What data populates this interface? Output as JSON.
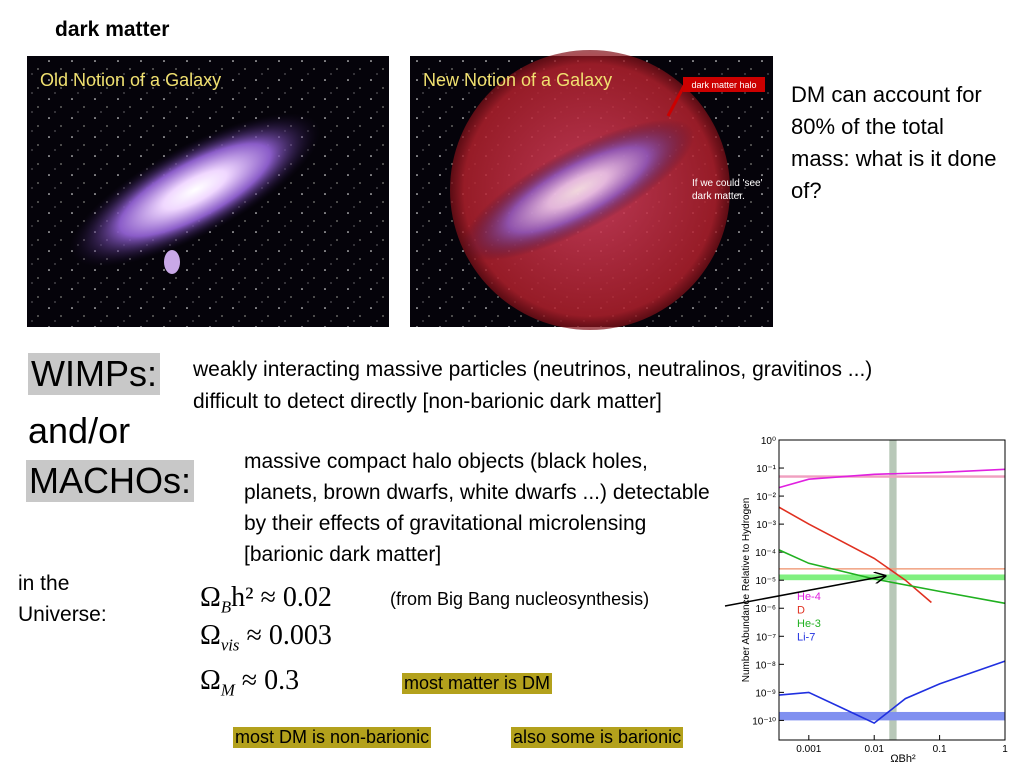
{
  "title": "dark matter",
  "images": [
    {
      "caption": "Old Notion of a Galaxy"
    },
    {
      "caption": "New Notion of a Galaxy",
      "halo_label": "dark matter halo",
      "note_1": "If we could 'see'",
      "note_2": "dark matter."
    }
  ],
  "side_note": "DM can account for 80% of the total mass: what is it done of?",
  "wimps": {
    "label": "WIMPs:",
    "line_1": "weakly interacting massive particles (neutrinos, neutralinos, gravitinos ...)",
    "line_2": "difficult to detect directly [non-barionic dark matter]"
  },
  "and_or": "and/or",
  "machos": {
    "label": "MACHOs:",
    "description": "massive compact halo objects (black holes, planets, brown dwarfs, white dwarfs ...) detectable by their effects of gravitational microlensing [barionic dark matter]"
  },
  "universe_label": "in the Universe:",
  "formulas": [
    {
      "subscript": "B",
      "rest": "h² ≈ 0.02",
      "note": "(from Big Bang nucleosynthesis)"
    },
    {
      "subscript": "vis",
      "rest": " ≈ 0.003"
    },
    {
      "subscript": "M",
      "rest": " ≈ 0.3"
    }
  ],
  "highlights": [
    "most matter is DM",
    "most DM is non-barionic",
    "also some is barionic"
  ],
  "plot": {
    "type": "line",
    "x_label": "ΩBh²",
    "y_label": "Number Abundance Relative to Hydrogen",
    "log_x": true,
    "log_y": true,
    "xlim": [
      0.00035,
      1
    ],
    "ylim": [
      2e-11,
      1
    ],
    "xticks": [
      0.001,
      0.01,
      0.1,
      1
    ],
    "yticks": [
      {
        "value": 1,
        "label": "10⁰"
      },
      {
        "value": 0.1,
        "label": "10⁻¹"
      },
      {
        "value": 0.01,
        "label": "10⁻²"
      },
      {
        "value": 0.001,
        "label": "10⁻³"
      },
      {
        "value": 0.0001,
        "label": "10⁻⁴"
      },
      {
        "value": 1e-05,
        "label": "10⁻⁵"
      },
      {
        "value": 1e-06,
        "label": "10⁻⁶"
      },
      {
        "value": 1e-07,
        "label": "10⁻⁷"
      },
      {
        "value": 1e-08,
        "label": "10⁻⁸"
      },
      {
        "value": 1e-09,
        "label": "10⁻⁹"
      },
      {
        "value": 1e-10,
        "label": "10⁻¹⁰"
      }
    ],
    "series": [
      {
        "name": "He-4",
        "color": "#e020e0",
        "x": [
          0.00035,
          0.001,
          0.01,
          0.1,
          1
        ],
        "values": [
          0.02,
          0.04,
          0.06,
          0.07,
          0.09
        ]
      },
      {
        "name": "D",
        "color": "#e03020",
        "x": [
          0.00035,
          0.001,
          0.01,
          0.03,
          0.075
        ],
        "values": [
          0.004,
          0.001,
          6e-05,
          1e-05,
          1.6e-06
        ]
      },
      {
        "name": "He-3",
        "color": "#20b020",
        "x": [
          0.00035,
          0.001,
          0.01,
          0.1,
          1
        ],
        "values": [
          0.00012,
          4e-05,
          1.1e-05,
          4e-06,
          1.5e-06
        ]
      },
      {
        "name": "Li-7",
        "color": "#2030e0",
        "x": [
          0.00035,
          0.001,
          0.003,
          0.01,
          0.03,
          0.1,
          1
        ],
        "values": [
          8e-10,
          1e-09,
          3e-10,
          8e-11,
          6e-10,
          2e-09,
          1.3e-08
        ]
      }
    ],
    "y_bands": [
      {
        "range": [
          0.045,
          0.055
        ],
        "color": "#f0a0c0"
      },
      {
        "range": [
          2.4e-05,
          2.7e-05
        ],
        "color": "#f0a080"
      },
      {
        "range": [
          1e-05,
          1.6e-05
        ],
        "color": "#80f080"
      },
      {
        "range": [
          1e-10,
          2e-10
        ],
        "color": "#8090f0"
      }
    ],
    "x_bands": [
      {
        "range": [
          0.017,
          0.022
        ],
        "color": "#b8c8b8"
      }
    ]
  }
}
